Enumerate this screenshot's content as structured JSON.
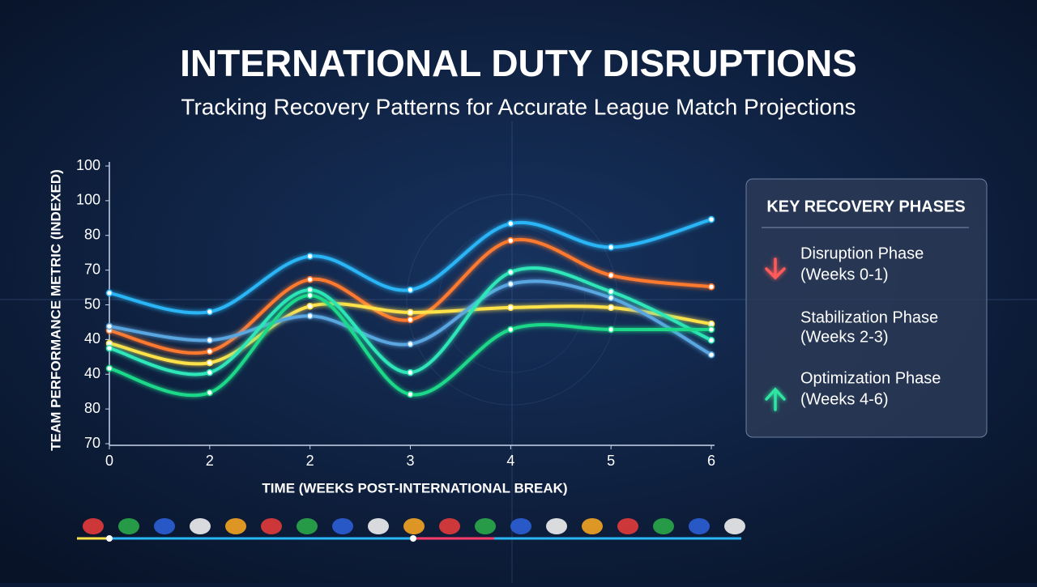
{
  "chart_data": {
    "type": "line",
    "title": "INTERNATIONAL DUTY DISRUPTIONS",
    "subtitle": "Tracking Recovery Patterns for Accurate League Match Projections",
    "x_label": "TIME (WEEKS POST-INTERNATIONAL BREAK)",
    "y_label": "TEAM PERFORMANCE METRIC (INDEXED)",
    "categories": [
      "0",
      "2",
      "2",
      "3",
      "4",
      "5",
      "6"
    ],
    "ylim": [
      0,
      8
    ],
    "yticks": [
      {
        "value": 0,
        "label": "70"
      },
      {
        "value": 1,
        "label": "80"
      },
      {
        "value": 2,
        "label": "40"
      },
      {
        "value": 3,
        "label": "40"
      },
      {
        "value": 4,
        "label": "50"
      },
      {
        "value": 5,
        "label": "70"
      },
      {
        "value": 6,
        "label": "80"
      },
      {
        "value": 7,
        "label": "100"
      },
      {
        "value": 8,
        "label": "100"
      }
    ],
    "series": [
      {
        "color": "#29b6f6",
        "values": [
          4.34,
          3.8,
          5.4,
          4.43,
          6.34,
          5.66,
          6.46
        ]
      },
      {
        "color": "#ff7a2f",
        "values": [
          3.26,
          2.66,
          4.73,
          3.57,
          5.85,
          4.85,
          4.52
        ]
      },
      {
        "color": "#ffe14a",
        "values": [
          2.89,
          2.33,
          3.96,
          3.78,
          3.92,
          3.92,
          3.45
        ]
      },
      {
        "color": "#5aa6e0",
        "values": [
          3.38,
          2.98,
          3.68,
          2.87,
          4.6,
          4.2,
          2.56
        ]
      },
      {
        "color": "#2ee6b8",
        "values": [
          2.75,
          2.05,
          4.43,
          2.05,
          4.94,
          4.38,
          2.98
        ]
      },
      {
        "color": "#1fd98a",
        "values": [
          2.17,
          1.47,
          4.27,
          1.42,
          3.29,
          3.29,
          3.29
        ]
      }
    ],
    "legend": {
      "title": "KEY RECOVERY PHASES",
      "items": [
        {
          "label": [
            "Disruption Phase",
            "(Weeks 0-1)"
          ],
          "color": "#ff5a5a"
        },
        {
          "label": [
            "Stabilization Phase",
            "(Weeks 2-3)"
          ],
          "color": "#ffe14a"
        },
        {
          "label": [
            "Optimization Phase",
            "(Weeks 4-6)"
          ],
          "color": "#2ee6a0"
        }
      ]
    }
  }
}
